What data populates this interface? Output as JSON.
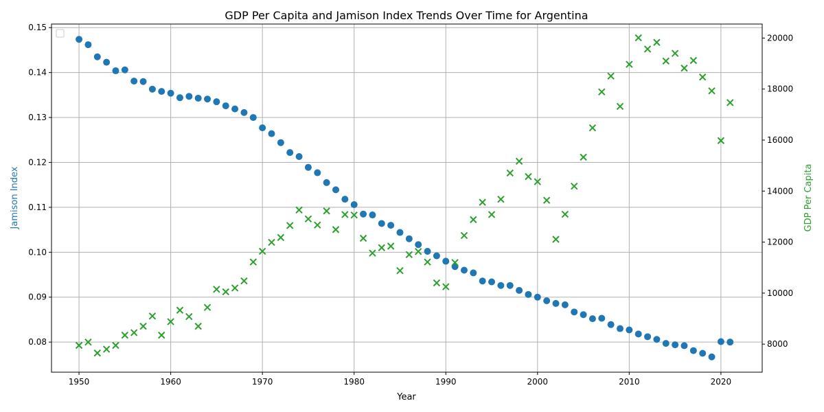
{
  "chart_data": {
    "type": "scatter",
    "title": "GDP Per Capita and Jamison Index Trends Over Time for Argentina",
    "xlabel": "Year",
    "ylabel_left": "Jamison Index",
    "ylabel_right": "GDP Per Capita",
    "grid": true,
    "legend": "top-left (empty)",
    "xlim": [
      1947,
      2024.5
    ],
    "ylim_left": [
      0.0733,
      0.1508
    ],
    "ylim_right": [
      6900,
      20550
    ],
    "x_ticks": [
      1950,
      1960,
      1970,
      1980,
      1990,
      2000,
      2010,
      2020
    ],
    "y_left_ticks": [
      0.08,
      0.09,
      0.1,
      0.11,
      0.12,
      0.13,
      0.14,
      0.15
    ],
    "y_left_tick_labels": [
      "0.08",
      "0.09",
      "0.10",
      "0.11",
      "0.12",
      "0.13",
      "0.14",
      "0.15"
    ],
    "y_right_ticks": [
      8000,
      10000,
      12000,
      14000,
      16000,
      18000,
      20000
    ],
    "y_right_tick_labels": [
      "8000",
      "10000",
      "12000",
      "14000",
      "16000",
      "18000",
      "20000"
    ],
    "colors": {
      "jamison": "#1f77b4",
      "gdp": "#2ca02c",
      "grid": "#b0b0b0",
      "axis": "#000000"
    },
    "series": [
      {
        "key": "jamison",
        "axis": "left",
        "marker": "circle",
        "color": "#1f77b4",
        "x": [
          1950,
          1951,
          1952,
          1953,
          1954,
          1955,
          1956,
          1957,
          1958,
          1959,
          1960,
          1961,
          1962,
          1963,
          1964,
          1965,
          1966,
          1967,
          1968,
          1969,
          1970,
          1971,
          1972,
          1973,
          1974,
          1975,
          1976,
          1977,
          1978,
          1979,
          1980,
          1981,
          1982,
          1983,
          1984,
          1985,
          1986,
          1987,
          1988,
          1989,
          1990,
          1991,
          1992,
          1993,
          1994,
          1995,
          1996,
          1997,
          1998,
          1999,
          2000,
          2001,
          2002,
          2003,
          2004,
          2005,
          2006,
          2007,
          2008,
          2009,
          2010,
          2011,
          2012,
          2013,
          2014,
          2015,
          2016,
          2017,
          2018,
          2019,
          2020,
          2021
        ],
        "y": [
          0.1474,
          0.1462,
          0.1435,
          0.1423,
          0.1404,
          0.1406,
          0.1381,
          0.138,
          0.1363,
          0.1358,
          0.1354,
          0.1344,
          0.1347,
          0.1343,
          0.1341,
          0.1335,
          0.1326,
          0.1319,
          0.1311,
          0.13,
          0.1277,
          0.1264,
          0.1244,
          0.1222,
          0.1213,
          0.1189,
          0.1177,
          0.1155,
          0.1139,
          0.1118,
          0.1106,
          0.1085,
          0.1083,
          0.1064,
          0.106,
          0.1044,
          0.103,
          0.1017,
          0.1002,
          0.0992,
          0.098,
          0.0968,
          0.096,
          0.0954,
          0.0936,
          0.0934,
          0.0926,
          0.0926,
          0.0915,
          0.0906,
          0.09,
          0.0892,
          0.0886,
          0.0883,
          0.0867,
          0.0861,
          0.0852,
          0.0853,
          0.0839,
          0.083,
          0.0827,
          0.0818,
          0.0812,
          0.0806,
          0.0797,
          0.0794,
          0.0792,
          0.0781,
          0.0775,
          0.0767,
          0.0801,
          0.08
        ]
      },
      {
        "key": "gdp",
        "axis": "right",
        "marker": "x",
        "color": "#2ca02c",
        "x": [
          1950,
          1951,
          1952,
          1953,
          1954,
          1955,
          1956,
          1957,
          1958,
          1959,
          1960,
          1961,
          1962,
          1963,
          1964,
          1965,
          1966,
          1967,
          1968,
          1969,
          1970,
          1971,
          1972,
          1973,
          1974,
          1975,
          1976,
          1977,
          1978,
          1979,
          1980,
          1981,
          1982,
          1983,
          1984,
          1985,
          1986,
          1987,
          1988,
          1989,
          1990,
          1991,
          1992,
          1993,
          1994,
          1995,
          1996,
          1997,
          1998,
          1999,
          2000,
          2001,
          2002,
          2003,
          2004,
          2005,
          2006,
          2007,
          2008,
          2009,
          2010,
          2011,
          2012,
          2013,
          2014,
          2015,
          2016,
          2017,
          2018,
          2019,
          2020,
          2021
        ],
        "y": [
          7950,
          8080,
          7650,
          7800,
          7950,
          8350,
          8450,
          8700,
          9100,
          8350,
          8880,
          9330,
          9080,
          8700,
          9440,
          10150,
          10050,
          10200,
          10480,
          11220,
          11640,
          11990,
          12180,
          12650,
          13260,
          12910,
          12670,
          13220,
          12490,
          13080,
          13060,
          12150,
          11570,
          11780,
          11840,
          10880,
          11510,
          11630,
          11220,
          10400,
          10250,
          11200,
          12260,
          12880,
          13560,
          13080,
          13680,
          14710,
          15170,
          14570,
          14370,
          13640,
          12110,
          13090,
          14190,
          15330,
          16480,
          17890,
          18510,
          17320,
          18970,
          20010,
          19570,
          19830,
          19100,
          19400,
          18820,
          19120,
          18470,
          17930,
          15980,
          17470
        ]
      }
    ]
  }
}
